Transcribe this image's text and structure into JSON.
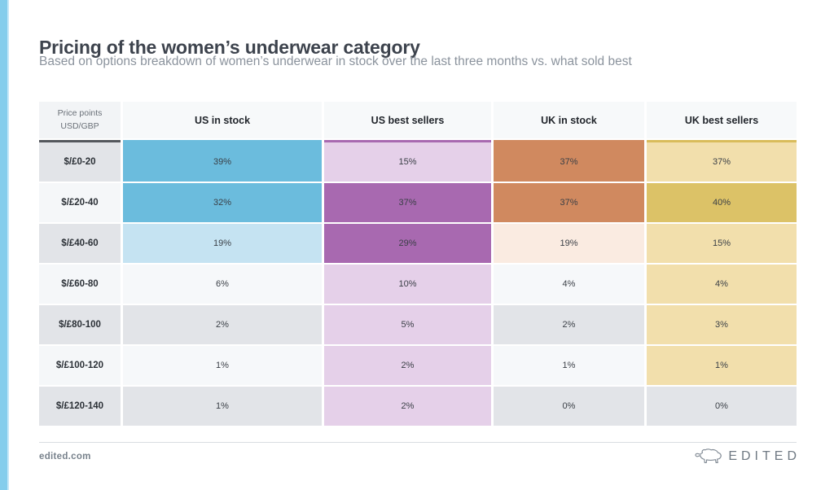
{
  "header": {
    "title": "Pricing of the women’s underwear category",
    "subtitle": "Based on options breakdown of women’s underwear in stock over the last three months vs. what sold best"
  },
  "footer": {
    "site": "edited.com",
    "brand": "EDITED",
    "brand_icon": "polar-bear-outline"
  },
  "colors": {
    "accent_strip": "#85CDEC",
    "title_text": "#3D434D",
    "subtitle_text": "#8B939D",
    "divider": "#D9DDE1",
    "footer_text": "#78828C",
    "palette": {
      "blue": "#6BBCDD",
      "blueLight": "#C5E3F2",
      "purpleDark": "#A869B0",
      "purpleLight": "#E5D0E9",
      "orange": "#D0895F",
      "peach": "#FAEBE1",
      "goldDark": "#DCC267",
      "goldLight": "#F2DFAC",
      "zebraDark": "#E2E4E8",
      "zebraLight": "#F6F8FA"
    }
  },
  "chart_data": {
    "type": "heatmap",
    "title": "Pricing of the women’s underwear category",
    "subtitle": "Based on options breakdown of women’s underwear in stock over the last three months vs. what sold best",
    "corner_header": [
      "Price points",
      "USD/GBP"
    ],
    "row_header_accent": "#54575C",
    "columns": [
      {
        "label": "US in stock",
        "accent": "#6BBCDD"
      },
      {
        "label": "US best sellers",
        "accent": "#A869B0"
      },
      {
        "label": "UK in stock",
        "accent": "#D0895F"
      },
      {
        "label": "UK best sellers",
        "accent": "#D9BC5B"
      }
    ],
    "rows": [
      "$/£0-20",
      "$/£20-40",
      "$/£40-60",
      "$/£60-80",
      "$/£80-100",
      "$/£100-120",
      "$/£120-140"
    ],
    "unit": "%",
    "values": [
      [
        39,
        15,
        37,
        37
      ],
      [
        32,
        37,
        37,
        40
      ],
      [
        19,
        29,
        19,
        15
      ],
      [
        6,
        10,
        4,
        4
      ],
      [
        2,
        5,
        2,
        3
      ],
      [
        1,
        2,
        1,
        1
      ],
      [
        1,
        2,
        0,
        0
      ]
    ],
    "cell_color_keys": [
      [
        "blue",
        "purpleLight",
        "orange",
        "goldLight"
      ],
      [
        "blue",
        "purpleDark",
        "orange",
        "goldDark"
      ],
      [
        "blueLight",
        "purpleDark",
        "peach",
        "goldLight"
      ],
      [
        "zebra",
        "purpleLight",
        "zebra",
        "goldLight"
      ],
      [
        "zebra",
        "purpleLight",
        "zebra",
        "goldLight"
      ],
      [
        "zebra",
        "purpleLight",
        "zebra",
        "goldLight"
      ],
      [
        "zebra",
        "purpleLight",
        "zebra",
        "zebra"
      ]
    ]
  }
}
